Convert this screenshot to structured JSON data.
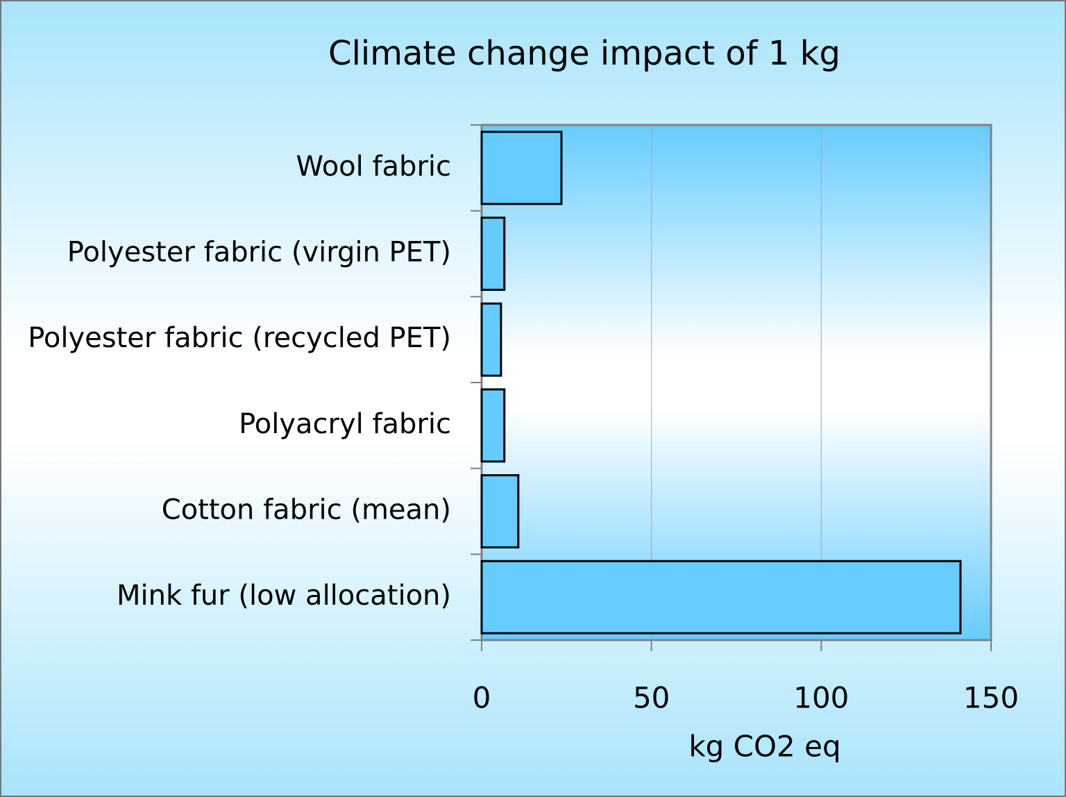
{
  "chart_data": {
    "type": "bar",
    "orientation": "horizontal",
    "title": "Climate change impact of 1 kg",
    "x_label": "kg CO2 eq",
    "categories": [
      "Wool fabric",
      "Polyester fabric (virgin PET)",
      "Polyester fabric (recycled PET)",
      "Polyacryl fabric",
      "Cotton fabric (mean)",
      "Mink fur (low allocation)"
    ],
    "values": [
      23.5,
      6.7,
      5.7,
      6.7,
      10.8,
      141
    ],
    "color": "#66ccff",
    "xlim": [
      0,
      150
    ],
    "xticks": [
      0,
      50,
      100,
      150
    ],
    "grid": true
  }
}
